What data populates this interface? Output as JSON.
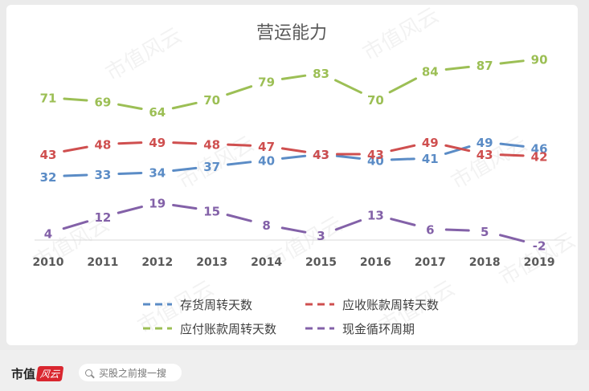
{
  "chart_data": {
    "type": "line",
    "title": "营运能力",
    "categories": [
      "2010",
      "2011",
      "2012",
      "2013",
      "2014",
      "2015",
      "2016",
      "2017",
      "2018",
      "2019"
    ],
    "ylim": [
      -5,
      95
    ],
    "grid": false,
    "legend_position": "bottom",
    "series": [
      {
        "name": "存货周转天数",
        "color": "#5b8cc6",
        "label_position": "left",
        "values": [
          32,
          33,
          34,
          37,
          40,
          43,
          40,
          41,
          49,
          46
        ],
        "labels": [
          "32",
          "33",
          "34",
          "37",
          "40",
          "43",
          "40",
          "41",
          "49",
          "46"
        ]
      },
      {
        "name": "应收账款周转天数",
        "color": "#cf4f4f",
        "label_position": "right",
        "values": [
          43,
          48,
          49,
          48,
          47,
          43,
          43,
          49,
          43,
          42
        ],
        "labels": [
          "43",
          "48",
          "49",
          "48",
          "47",
          "43",
          "43",
          "49",
          "43",
          "42"
        ]
      },
      {
        "name": "应付账款周转天数",
        "color": "#9cbf55",
        "label_position": "left",
        "values": [
          71,
          69,
          64,
          70,
          79,
          83,
          70,
          84,
          87,
          90
        ],
        "labels": [
          "71",
          "69",
          "64",
          "70",
          "79",
          "83",
          "70",
          "84",
          "87",
          "90"
        ]
      },
      {
        "name": "现金循环周期",
        "color": "#8361a8",
        "label_position": "left",
        "values": [
          4,
          12,
          19,
          15,
          8,
          3,
          13,
          6,
          5,
          -2
        ],
        "labels": [
          "4",
          "12",
          "19",
          "15",
          "8",
          "3",
          "13",
          "6",
          "5",
          "-2"
        ]
      }
    ]
  },
  "watermark": "市值风云",
  "bottom_bar": {
    "brand_text": "市值",
    "brand_badge": "风云",
    "search_placeholder": "买股之前搜一搜"
  }
}
